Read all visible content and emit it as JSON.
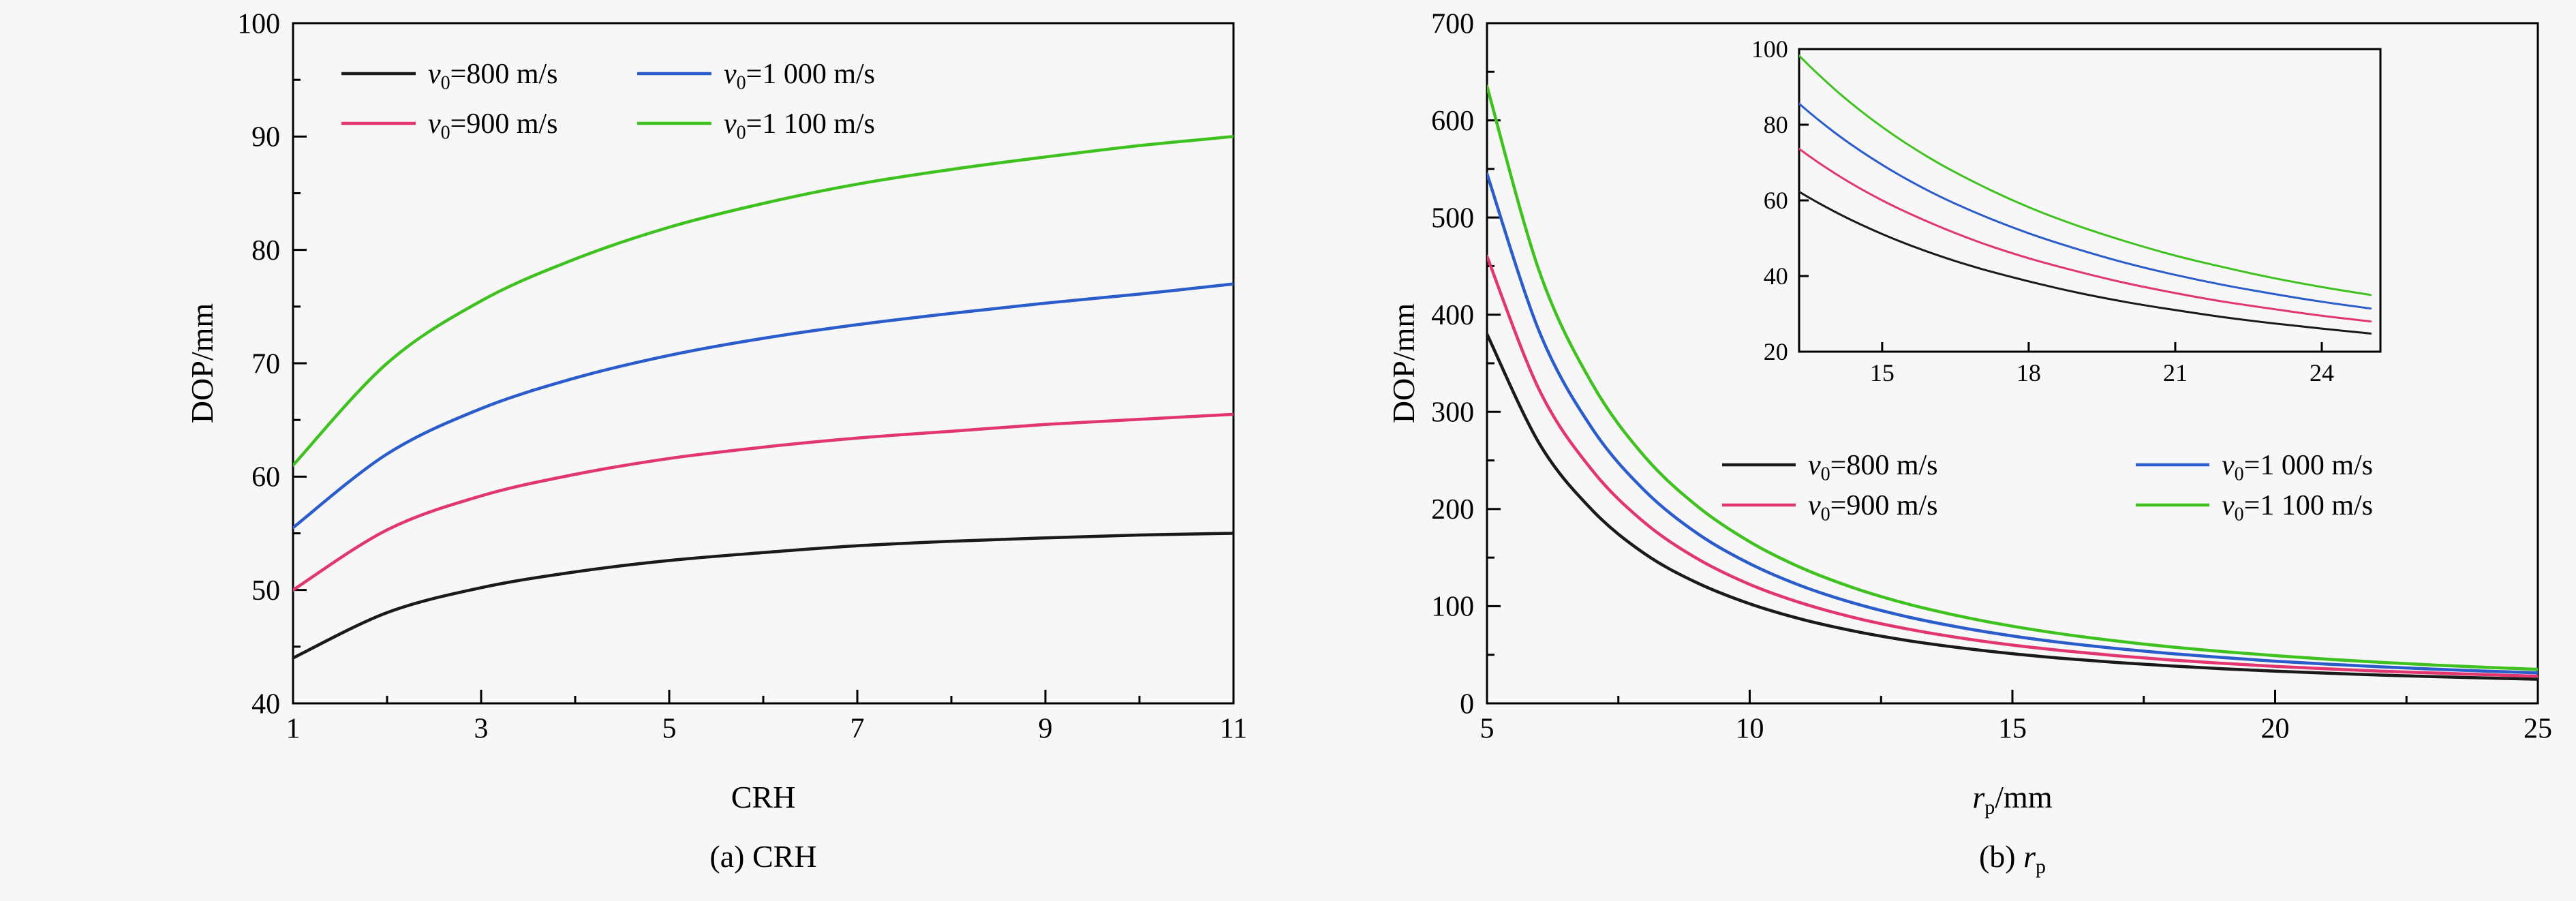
{
  "figure": {
    "background": "#f7f7f7",
    "axis_color": "#000000"
  },
  "chart_data": [
    {
      "id": "chartA",
      "type": "line",
      "title": "",
      "xlabel": "CRH",
      "ylabel": "DOP/mm",
      "caption": "(a) CRH",
      "xlabel_rich": [
        {
          "t": "CRH"
        }
      ],
      "ylabel_rich": [
        {
          "t": "DOP/mm"
        }
      ],
      "caption_rich": [
        {
          "t": "(a) CRH"
        }
      ],
      "xlim": [
        1,
        11
      ],
      "ylim": [
        40,
        100
      ],
      "xticks": [
        1,
        3,
        5,
        7,
        9,
        11
      ],
      "xminor": [
        2,
        4,
        6,
        8,
        10
      ],
      "yticks": [
        40,
        50,
        60,
        70,
        80,
        90,
        100
      ],
      "yminor": [
        45,
        55,
        65,
        75,
        85,
        95
      ],
      "grid": false,
      "legend_position": "top-left-two-columns",
      "x": [
        1,
        2,
        3,
        4,
        5,
        6,
        7,
        8,
        9,
        10,
        11
      ],
      "series": [
        {
          "name": "v0=800 m/s",
          "color": "#1a1a1a",
          "label_rich": [
            {
              "i": "v"
            },
            {
              "s": "0"
            },
            {
              "t": "=800 m/s"
            }
          ],
          "values": [
            44.0,
            48.0,
            50.2,
            51.6,
            52.6,
            53.3,
            53.9,
            54.3,
            54.6,
            54.85,
            55.0
          ]
        },
        {
          "name": "v0=900 m/s",
          "color": "#e1366f",
          "label_rich": [
            {
              "i": "v"
            },
            {
              "s": "0"
            },
            {
              "t": "=900 m/s"
            }
          ],
          "values": [
            50.0,
            55.3,
            58.3,
            60.2,
            61.6,
            62.6,
            63.4,
            64.0,
            64.6,
            65.05,
            65.5
          ]
        },
        {
          "name": "v0=1 000 m/s",
          "color": "#2a5ccc",
          "label_rich": [
            {
              "i": "v"
            },
            {
              "s": "0"
            },
            {
              "t": "=1 000 m/s"
            }
          ],
          "values": [
            55.5,
            62.0,
            66.0,
            68.7,
            70.7,
            72.2,
            73.4,
            74.4,
            75.3,
            76.1,
            77.0
          ]
        },
        {
          "name": "v0=1 100 m/s",
          "color": "#3fc220",
          "label_rich": [
            {
              "i": "v"
            },
            {
              "s": "0"
            },
            {
              "t": "=1 100 m/s"
            }
          ],
          "values": [
            61.0,
            70.0,
            75.5,
            79.2,
            82.0,
            84.1,
            85.8,
            87.1,
            88.2,
            89.2,
            90.0
          ]
        }
      ]
    },
    {
      "id": "chartB",
      "type": "line",
      "title": "",
      "xlabel": "rp/mm",
      "ylabel": "DOP/mm",
      "caption": "(b) rp",
      "xlabel_rich": [
        {
          "i": "r"
        },
        {
          "s": "p"
        },
        {
          "t": "/mm"
        }
      ],
      "ylabel_rich": [
        {
          "t": "DOP/mm"
        }
      ],
      "caption_rich": [
        {
          "t": "(b) "
        },
        {
          "i": "r"
        },
        {
          "s": "p"
        }
      ],
      "xlim": [
        5,
        25
      ],
      "ylim": [
        0,
        700
      ],
      "xticks": [
        5,
        10,
        15,
        20,
        25
      ],
      "xminor": [
        7.5,
        12.5,
        17.5,
        22.5
      ],
      "yticks": [
        0,
        100,
        200,
        300,
        400,
        500,
        600,
        700
      ],
      "yminor": [
        50,
        150,
        250,
        350,
        450,
        550,
        650
      ],
      "grid": false,
      "legend_position": "center-right-two-columns",
      "x": [
        5,
        6,
        7,
        8,
        9,
        10,
        11,
        12,
        13,
        14,
        15,
        16,
        17,
        18,
        19,
        20,
        21,
        22,
        23,
        24,
        25
      ],
      "series": [
        {
          "name": "v0=800 m/s",
          "color": "#1a1a1a",
          "label_rich": [
            {
              "i": "v"
            },
            {
              "s": "0"
            },
            {
              "t": "=800 m/s"
            }
          ],
          "values": [
            380,
            267,
            199,
            154,
            124,
            102.5,
            86.4,
            74.2,
            64.7,
            57.2,
            51.1,
            46.1,
            42.0,
            38.6,
            35.6,
            33.1,
            31.0,
            29.1,
            27.5,
            26.1,
            24.8
          ]
        },
        {
          "name": "v0=900 m/s",
          "color": "#e1366f",
          "label_rich": [
            {
              "i": "v"
            },
            {
              "s": "0"
            },
            {
              "t": "=900 m/s"
            }
          ],
          "values": [
            460,
            322,
            240,
            186,
            149,
            122.5,
            103,
            88.1,
            76.6,
            67.4,
            60.0,
            54.0,
            48.9,
            44.7,
            41.2,
            38.1,
            35.5,
            33.2,
            31.3,
            29.5,
            28.0
          ]
        },
        {
          "name": "v0=1 000 m/s",
          "color": "#2a5ccc",
          "label_rich": [
            {
              "i": "v"
            },
            {
              "s": "0"
            },
            {
              "t": "=1 000 m/s"
            }
          ],
          "values": [
            545,
            382,
            283,
            219,
            175,
            143.8,
            120.5,
            102.9,
            89.1,
            78.2,
            69.4,
            62.2,
            56.3,
            51.3,
            47.1,
            43.4,
            40.3,
            37.6,
            35.3,
            33.2,
            31.4
          ]
        },
        {
          "name": "v0=1 100 m/s",
          "color": "#3fc220",
          "label_rich": [
            {
              "i": "v"
            },
            {
              "s": "0"
            },
            {
              "t": "=1 100 m/s"
            }
          ],
          "values": [
            635,
            444,
            329,
            254,
            203,
            166.3,
            139.1,
            118.5,
            102.4,
            89.7,
            79.4,
            71.0,
            64.1,
            58.2,
            53.3,
            49.1,
            45.4,
            42.3,
            39.5,
            37.1,
            35.0
          ]
        }
      ],
      "inset": {
        "xlim": [
          13.3,
          25.2
        ],
        "ylim": [
          20,
          100
        ],
        "xticks": [
          15,
          18,
          21,
          24
        ],
        "yticks": [
          20,
          40,
          60,
          80,
          100
        ]
      }
    }
  ]
}
